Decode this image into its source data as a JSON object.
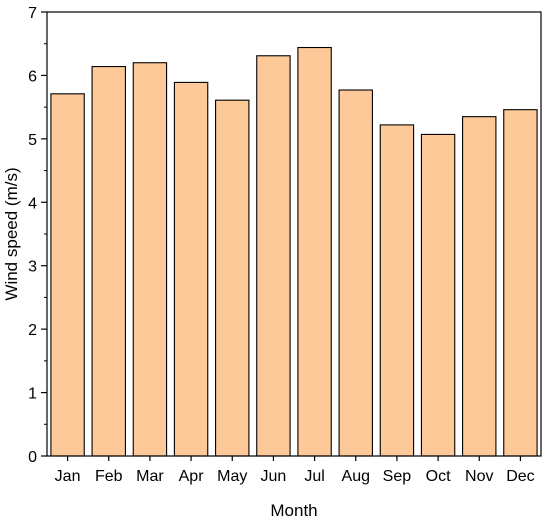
{
  "chart_data": {
    "type": "bar",
    "xlabel": "Month",
    "ylabel": "Wind speed (m/s)",
    "categories": [
      "Jan",
      "Feb",
      "Mar",
      "Apr",
      "May",
      "Jun",
      "Jul",
      "Aug",
      "Sep",
      "Oct",
      "Nov",
      "Dec"
    ],
    "values": [
      5.71,
      6.14,
      6.2,
      5.89,
      5.61,
      6.31,
      6.44,
      5.77,
      5.22,
      5.07,
      5.35,
      5.46
    ],
    "ylim": [
      0,
      7
    ],
    "yticks": [
      "0",
      "1",
      "2",
      "3",
      "4",
      "5",
      "6",
      "7"
    ],
    "bar_color": "#fdc998",
    "bar_edge_color": "#000000",
    "grid": false,
    "legend": "none"
  }
}
